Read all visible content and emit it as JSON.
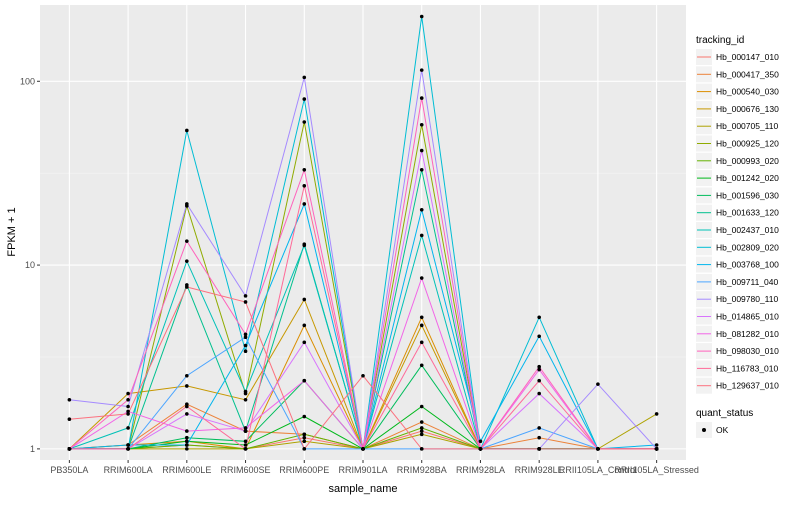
{
  "chart_data": {
    "type": "line",
    "title": "",
    "xlabel": "sample_name",
    "ylabel": "FPKM + 1",
    "y_scale": "log10",
    "ylim": [
      0.87,
      260
    ],
    "y_ticks": [
      1,
      10,
      100
    ],
    "y_tick_labels": [
      "1",
      "10",
      "100"
    ],
    "background": "#ebebeb",
    "grid": true,
    "legend_position": "right",
    "categories": [
      "PB350LA",
      "RRIM600LA",
      "RRIM600LE",
      "RRIM600SE",
      "RRIM600PE",
      "RRIM901LA",
      "RRIM928BA",
      "RRIM928LA",
      "RRIM928LE",
      "RRII105LA_Control",
      "RRII105LA_Stressed"
    ],
    "color_legend": {
      "title": "tracking_id"
    },
    "shape_legend": {
      "title": "quant_status",
      "items": [
        "OK"
      ]
    },
    "series": [
      {
        "name": "Hb_000147_010",
        "color": "#f8766d",
        "values": [
          1.0,
          1.0,
          1.05,
          1.0,
          1.15,
          1.0,
          1.25,
          1.0,
          1.0,
          1.0,
          1.0
        ]
      },
      {
        "name": "Hb_000417_350",
        "color": "#ec8239",
        "values": [
          1.0,
          1.05,
          1.75,
          1.25,
          1.2,
          1.0,
          1.4,
          1.0,
          1.15,
          1.0,
          1.0
        ]
      },
      {
        "name": "Hb_000540_030",
        "color": "#db8e00",
        "values": [
          1.0,
          1.05,
          1.1,
          1.0,
          4.7,
          1.0,
          5.2,
          1.0,
          1.0,
          1.0,
          1.0
        ]
      },
      {
        "name": "Hb_000676_130",
        "color": "#c79800",
        "values": [
          1.0,
          2.0,
          2.2,
          1.85,
          6.5,
          1.0,
          4.7,
          1.0,
          1.0,
          1.0,
          1.0
        ]
      },
      {
        "name": "Hb_000705_110",
        "color": "#aea200",
        "values": [
          1.0,
          1.0,
          1.0,
          1.0,
          1.1,
          1.0,
          1.2,
          1.0,
          1.0,
          1.0,
          1.55
        ]
      },
      {
        "name": "Hb_000925_120",
        "color": "#8fab00",
        "values": [
          1.0,
          1.0,
          21.0,
          2.0,
          60.0,
          1.0,
          58.0,
          1.0,
          1.0,
          1.0,
          1.0
        ]
      },
      {
        "name": "Hb_000993_020",
        "color": "#64b200",
        "values": [
          1.0,
          1.0,
          1.05,
          1.0,
          1.2,
          1.0,
          1.3,
          1.0,
          1.0,
          1.0,
          1.0
        ]
      },
      {
        "name": "Hb_001242_020",
        "color": "#00b81b",
        "values": [
          1.0,
          1.0,
          1.1,
          1.05,
          1.5,
          1.0,
          1.7,
          1.0,
          1.0,
          1.0,
          1.0
        ]
      },
      {
        "name": "Hb_001596_030",
        "color": "#00bd5c",
        "values": [
          1.0,
          1.0,
          1.15,
          1.1,
          2.35,
          1.0,
          2.85,
          1.0,
          1.0,
          1.0,
          1.0
        ]
      },
      {
        "name": "Hb_001633_120",
        "color": "#00c08e",
        "values": [
          1.0,
          1.0,
          7.8,
          1.25,
          13.0,
          1.0,
          33.0,
          1.0,
          1.0,
          1.0,
          1.0
        ]
      },
      {
        "name": "Hb_002437_010",
        "color": "#00c1b7",
        "values": [
          1.0,
          1.3,
          10.5,
          2.05,
          12.8,
          1.0,
          14.5,
          1.0,
          1.0,
          1.0,
          1.0
        ]
      },
      {
        "name": "Hb_002809_020",
        "color": "#00bdd4",
        "values": [
          1.0,
          1.0,
          54.0,
          3.4,
          80.0,
          1.0,
          225.0,
          1.0,
          5.2,
          1.0,
          1.0
        ]
      },
      {
        "name": "Hb_003768_100",
        "color": "#00b5ee",
        "values": [
          1.0,
          1.05,
          1.05,
          3.65,
          21.5,
          1.0,
          20.0,
          1.1,
          4.1,
          1.0,
          1.05
        ]
      },
      {
        "name": "Hb_009711_040",
        "color": "#4ba5ff",
        "values": [
          1.0,
          1.0,
          2.5,
          4.05,
          1.0,
          1.0,
          1.0,
          1.0,
          1.3,
          1.0,
          1.0
        ]
      },
      {
        "name": "Hb_009780_110",
        "color": "#a58aff",
        "values": [
          1.85,
          1.7,
          21.5,
          6.8,
          105.0,
          1.0,
          115.0,
          1.0,
          1.0,
          2.25,
          1.0
        ]
      },
      {
        "name": "Hb_014865_010",
        "color": "#d874fd",
        "values": [
          1.0,
          1.0,
          1.55,
          1.25,
          3.8,
          1.0,
          42.0,
          1.0,
          2.0,
          1.0,
          1.0
        ]
      },
      {
        "name": "Hb_081282_010",
        "color": "#f265e7",
        "values": [
          1.0,
          1.6,
          1.25,
          1.3,
          2.35,
          1.0,
          8.5,
          1.0,
          2.7,
          1.0,
          1.0
        ]
      },
      {
        "name": "Hb_098030_010",
        "color": "#ff62bc",
        "values": [
          1.0,
          1.85,
          13.5,
          4.2,
          33.0,
          1.0,
          81.0,
          1.0,
          2.8,
          1.0,
          1.0
        ]
      },
      {
        "name": "Hb_116783_010",
        "color": "#ff6a98",
        "values": [
          1.0,
          1.0,
          1.7,
          1.0,
          27.0,
          1.0,
          3.8,
          1.0,
          2.35,
          1.0,
          1.0
        ]
      },
      {
        "name": "Hb_129637_010",
        "color": "#fc717f",
        "values": [
          1.45,
          1.55,
          7.6,
          6.3,
          1.0,
          2.5,
          1.0,
          1.0,
          1.0,
          1.0,
          1.0
        ]
      }
    ]
  }
}
